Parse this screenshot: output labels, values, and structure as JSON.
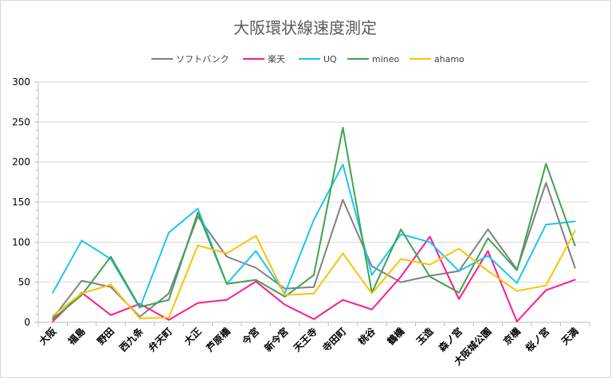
{
  "chart_data": {
    "type": "line",
    "title": "大阪環状線速度測定",
    "xlabel": "",
    "ylabel": "",
    "ylim": [
      0,
      300
    ],
    "yticks": [
      0,
      50,
      100,
      150,
      200,
      250,
      300
    ],
    "grid": true,
    "legend_position": "top",
    "categories": [
      "大阪",
      "福島",
      "野田",
      "西九条",
      "弁天町",
      "大正",
      "芦原橋",
      "今宮",
      "新今宮",
      "天王寺",
      "寺田町",
      "桃谷",
      "鶴橋",
      "玉造",
      "森ノ宮",
      "大阪城公園",
      "京橋",
      "桜ノ宮",
      "天満"
    ],
    "series": [
      {
        "name": "ソフトバンク",
        "color": "#808080",
        "values": [
          5,
          52,
          44,
          7,
          36,
          132,
          82,
          68,
          42,
          44,
          153,
          70,
          50,
          58,
          64,
          116,
          66,
          174,
          68
        ]
      },
      {
        "name": "楽天",
        "color": "#ff1a8c",
        "values": [
          1,
          37,
          9,
          23,
          3,
          24,
          28,
          51,
          22,
          4,
          28,
          16,
          57,
          107,
          29,
          89,
          1,
          40,
          53
        ]
      },
      {
        "name": "UQ",
        "color": "#1ac6f0",
        "values": [
          37,
          102,
          79,
          18,
          112,
          142,
          48,
          89,
          36,
          128,
          197,
          59,
          110,
          100,
          64,
          83,
          49,
          122,
          126
        ]
      },
      {
        "name": "mineo",
        "color": "#3da44d",
        "values": [
          4,
          34,
          82,
          19,
          28,
          137,
          48,
          53,
          32,
          59,
          243,
          37,
          116,
          57,
          37,
          105,
          65,
          198,
          96
        ]
      },
      {
        "name": "ahamo",
        "color": "#ffc000",
        "values": [
          8,
          36,
          47,
          5,
          6,
          96,
          86,
          108,
          34,
          36,
          86,
          36,
          79,
          72,
          92,
          64,
          39,
          46,
          114
        ]
      }
    ]
  }
}
